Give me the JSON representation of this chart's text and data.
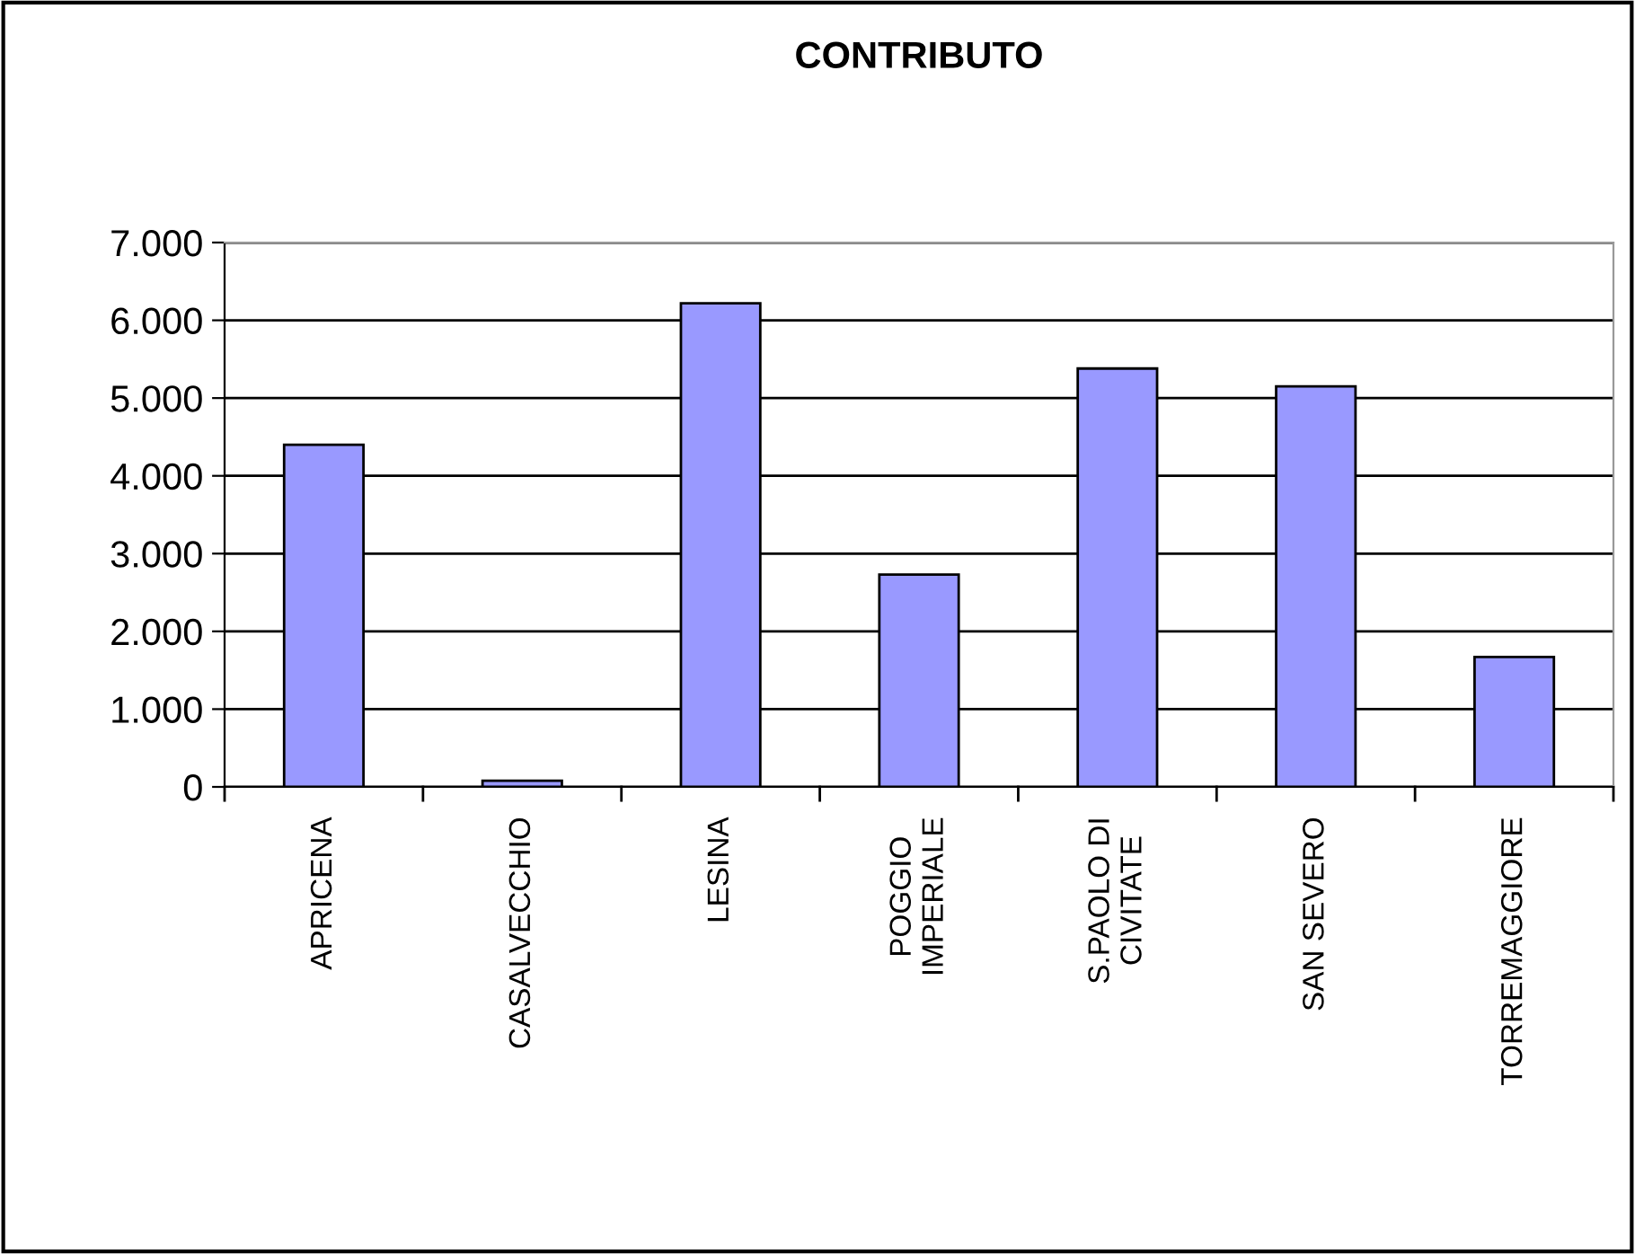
{
  "chart_data": {
    "type": "bar",
    "title": "CONTRIBUTO",
    "categories": [
      "APRICENA",
      "CASALVECCHIO",
      "LESINA",
      "POGGIO\nIMPERIALE",
      "S.PAOLO DI\nCIVITATE",
      "SAN SEVERO",
      "TORREMAGGIORE"
    ],
    "values": [
      4400,
      80,
      6220,
      2730,
      5380,
      5150,
      1670
    ],
    "color": "#9999ff",
    "ylim": [
      0,
      7000
    ],
    "yticks": [
      {
        "value": 0,
        "label": "0"
      },
      {
        "value": 1000,
        "label": "1.000"
      },
      {
        "value": 2000,
        "label": "2.000"
      },
      {
        "value": 3000,
        "label": "3.000"
      },
      {
        "value": 4000,
        "label": "4.000"
      },
      {
        "value": 5000,
        "label": "5.000"
      },
      {
        "value": 6000,
        "label": "6.000"
      },
      {
        "value": 7000,
        "label": "7.000"
      }
    ],
    "grid": "y",
    "legend": false
  }
}
